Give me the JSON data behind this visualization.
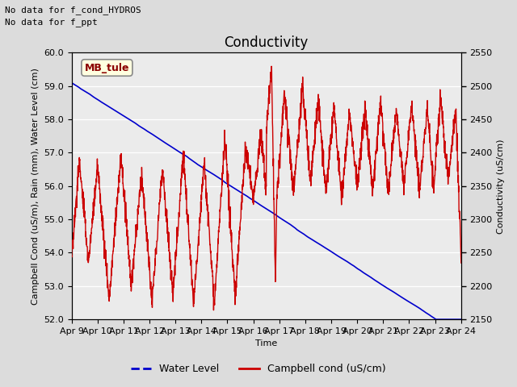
{
  "title": "Conductivity",
  "xlabel": "Time",
  "ylabel_left": "Campbell Cond (uS/m), Rain (mm), Water Level (cm)",
  "ylabel_right": "Conductivity (uS/cm)",
  "annotation_lines": [
    "No data for f_cond_HYDROS",
    "No data for f_ppt"
  ],
  "site_label": "MB_tule",
  "ylim_left": [
    52.0,
    60.0
  ],
  "ylim_right": [
    2150,
    2550
  ],
  "yticks_left": [
    52.0,
    53.0,
    54.0,
    55.0,
    56.0,
    57.0,
    58.0,
    59.0,
    60.0
  ],
  "yticks_right": [
    2150,
    2200,
    2250,
    2300,
    2350,
    2400,
    2450,
    2500,
    2550
  ],
  "xtick_labels": [
    "Apr 9",
    "Apr 10",
    "Apr 11",
    "Apr 12",
    "Apr 13",
    "Apr 14",
    "Apr 15",
    "Apr 16",
    "Apr 17",
    "Apr 18",
    "Apr 19",
    "Apr 20",
    "Apr 21",
    "Apr 22",
    "Apr 23",
    "Apr 24"
  ],
  "background_color": "#dcdcdc",
  "plot_bg_color": "#ebebeb",
  "water_level_color": "#0000cc",
  "campbell_color": "#cc0000",
  "legend_entries": [
    "Water Level",
    "Campbell cond (uS/cm)"
  ],
  "title_fontsize": 12,
  "label_fontsize": 8,
  "tick_fontsize": 8,
  "water_level_linestyle": "-",
  "campbell_linestyle": "-"
}
